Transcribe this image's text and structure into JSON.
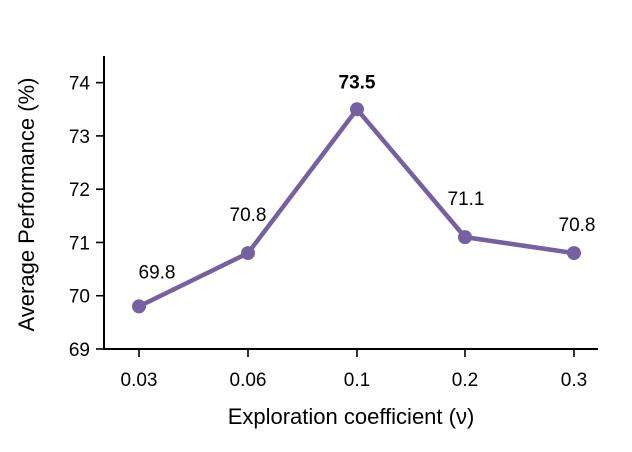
{
  "chart_data": {
    "type": "line",
    "x": [
      "0.03",
      "0.06",
      "0.1",
      "0.2",
      "0.3"
    ],
    "series": [
      {
        "values": [
          69.8,
          70.8,
          73.5,
          71.1,
          70.8
        ],
        "color": "#7560a1"
      }
    ],
    "data_labels": [
      "69.8",
      "70.8",
      "73.5",
      "71.1",
      "70.8"
    ],
    "highlight_index": 2,
    "xlabel": "Exploration coefficient (ν)",
    "ylabel": "Average Performance (%)",
    "ylim": [
      69,
      74.5
    ],
    "yticks": [
      "69",
      "70",
      "71",
      "72",
      "73",
      "74"
    ],
    "grid": false,
    "legend": "none"
  }
}
